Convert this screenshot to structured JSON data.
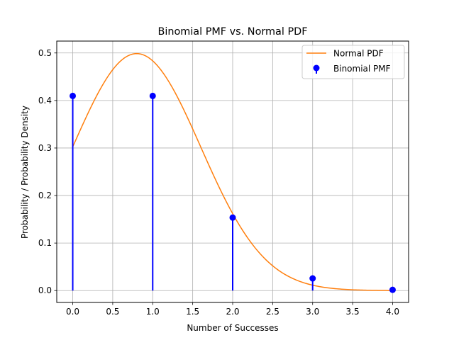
{
  "chart_data": {
    "type": "line",
    "title": "Binomial PMF vs. Normal PDF",
    "xlabel": "Number of Successes",
    "ylabel": "Probability / Probability Density",
    "xlim": [
      -0.2,
      4.2
    ],
    "ylim": [
      -0.025,
      0.525
    ],
    "grid": true,
    "legend_position": "top-right",
    "x_ticks": [
      0.0,
      0.5,
      1.0,
      1.5,
      2.0,
      2.5,
      3.0,
      3.5,
      4.0
    ],
    "x_tick_labels": [
      "0.0",
      "0.5",
      "1.0",
      "1.5",
      "2.0",
      "2.5",
      "3.0",
      "3.5",
      "4.0"
    ],
    "y_ticks": [
      0.0,
      0.1,
      0.2,
      0.3,
      0.4,
      0.5
    ],
    "y_tick_labels": [
      "0.0",
      "0.1",
      "0.2",
      "0.3",
      "0.4",
      "0.5"
    ],
    "series": [
      {
        "name": "Normal PDF",
        "kind": "line",
        "color": "#ff7f0e",
        "mean": 0.8,
        "std": 0.8,
        "x_range": [
          0,
          4
        ]
      },
      {
        "name": "Binomial PMF",
        "kind": "stem",
        "color": "#0000ff",
        "x": [
          0,
          1,
          2,
          3,
          4
        ],
        "y": [
          0.4096,
          0.4096,
          0.1536,
          0.0256,
          0.0016
        ]
      }
    ]
  }
}
